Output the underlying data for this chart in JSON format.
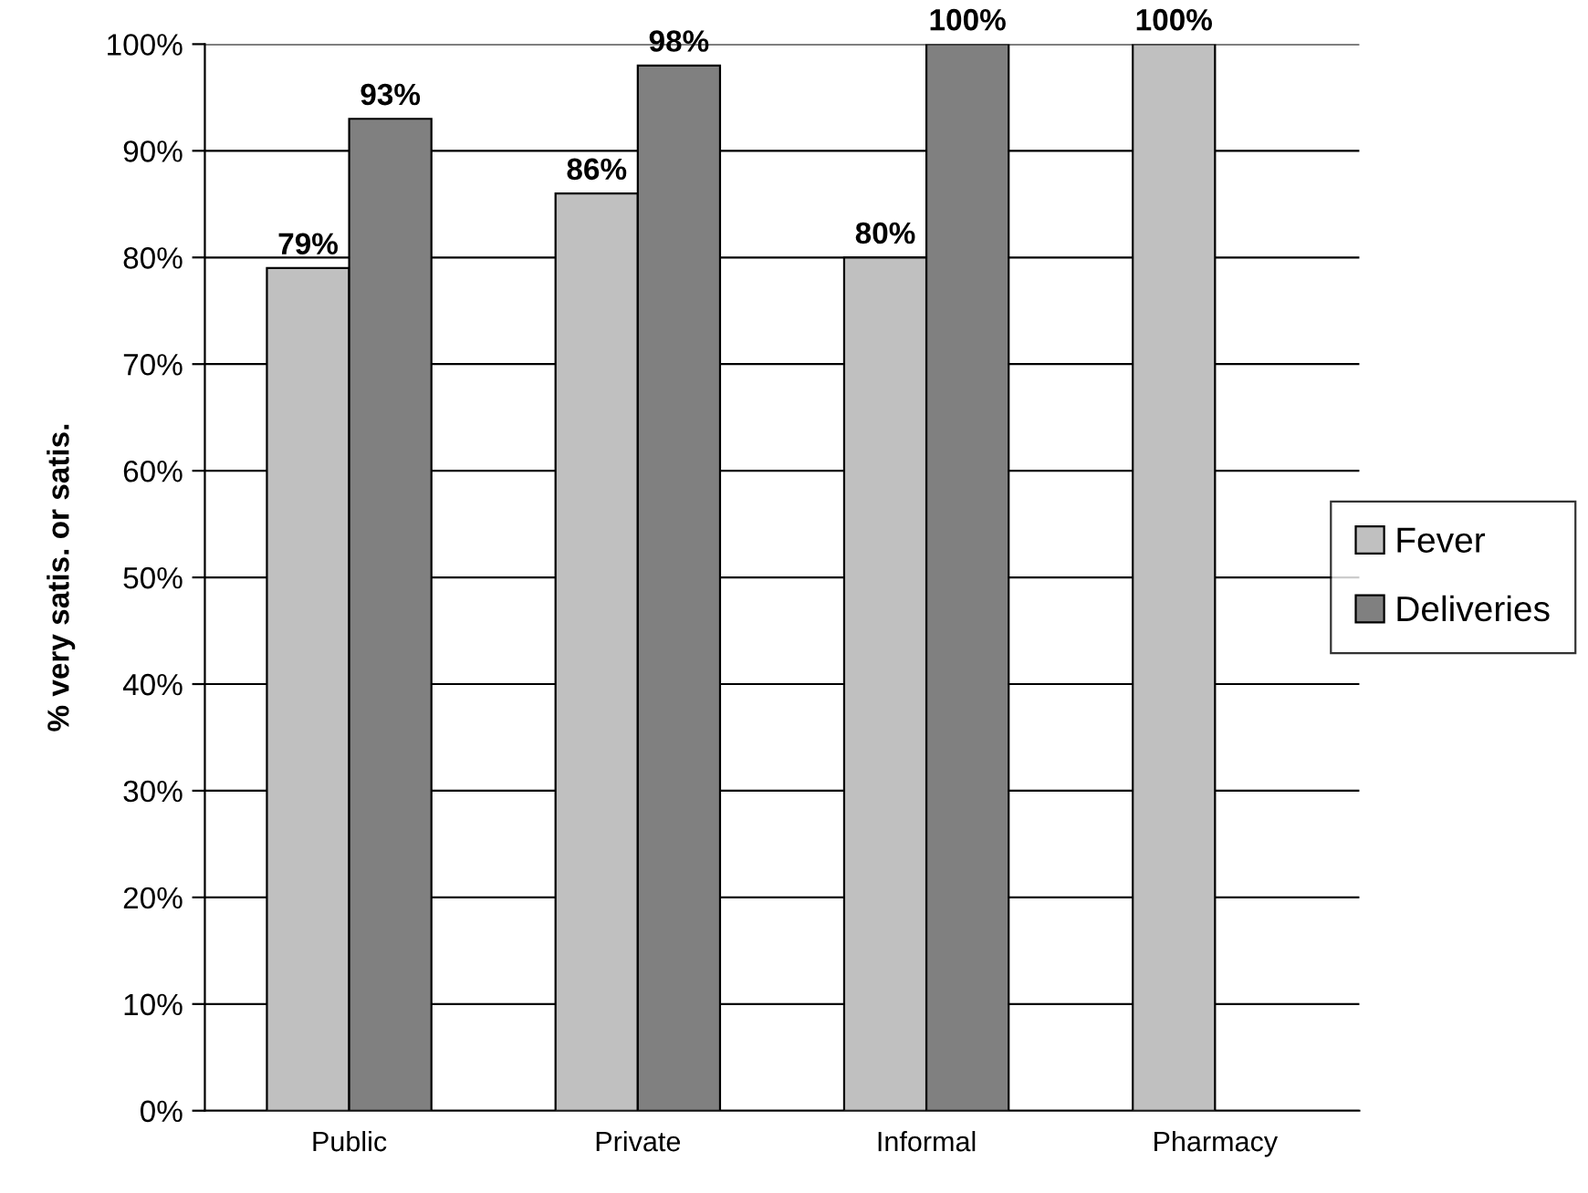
{
  "chart_data": {
    "type": "bar",
    "ylabel": "% very satis. or satis.",
    "categories": [
      "Public",
      "Private",
      "Informal",
      "Pharmacy"
    ],
    "series": [
      {
        "name": "Fever",
        "color": "#c0c0c0",
        "values": [
          79,
          86,
          80,
          100
        ],
        "value_labels": [
          "79%",
          "86%",
          "80%",
          "100%"
        ]
      },
      {
        "name": "Deliveries",
        "color": "#808080",
        "values": [
          93,
          98,
          100,
          null
        ],
        "value_labels": [
          "93%",
          "98%",
          "100%",
          null
        ]
      }
    ],
    "ylim": [
      0,
      100
    ],
    "yticks": [
      {
        "value": 0,
        "label": "0%"
      },
      {
        "value": 10,
        "label": "10%"
      },
      {
        "value": 20,
        "label": "20%"
      },
      {
        "value": 30,
        "label": "30%"
      },
      {
        "value": 40,
        "label": "40%"
      },
      {
        "value": 50,
        "label": "50%"
      },
      {
        "value": 60,
        "label": "60%"
      },
      {
        "value": 70,
        "label": "70%"
      },
      {
        "value": 80,
        "label": "80%"
      },
      {
        "value": 90,
        "label": "90%"
      },
      {
        "value": 100,
        "label": "100%"
      }
    ],
    "grid": "y",
    "legend": "right"
  }
}
